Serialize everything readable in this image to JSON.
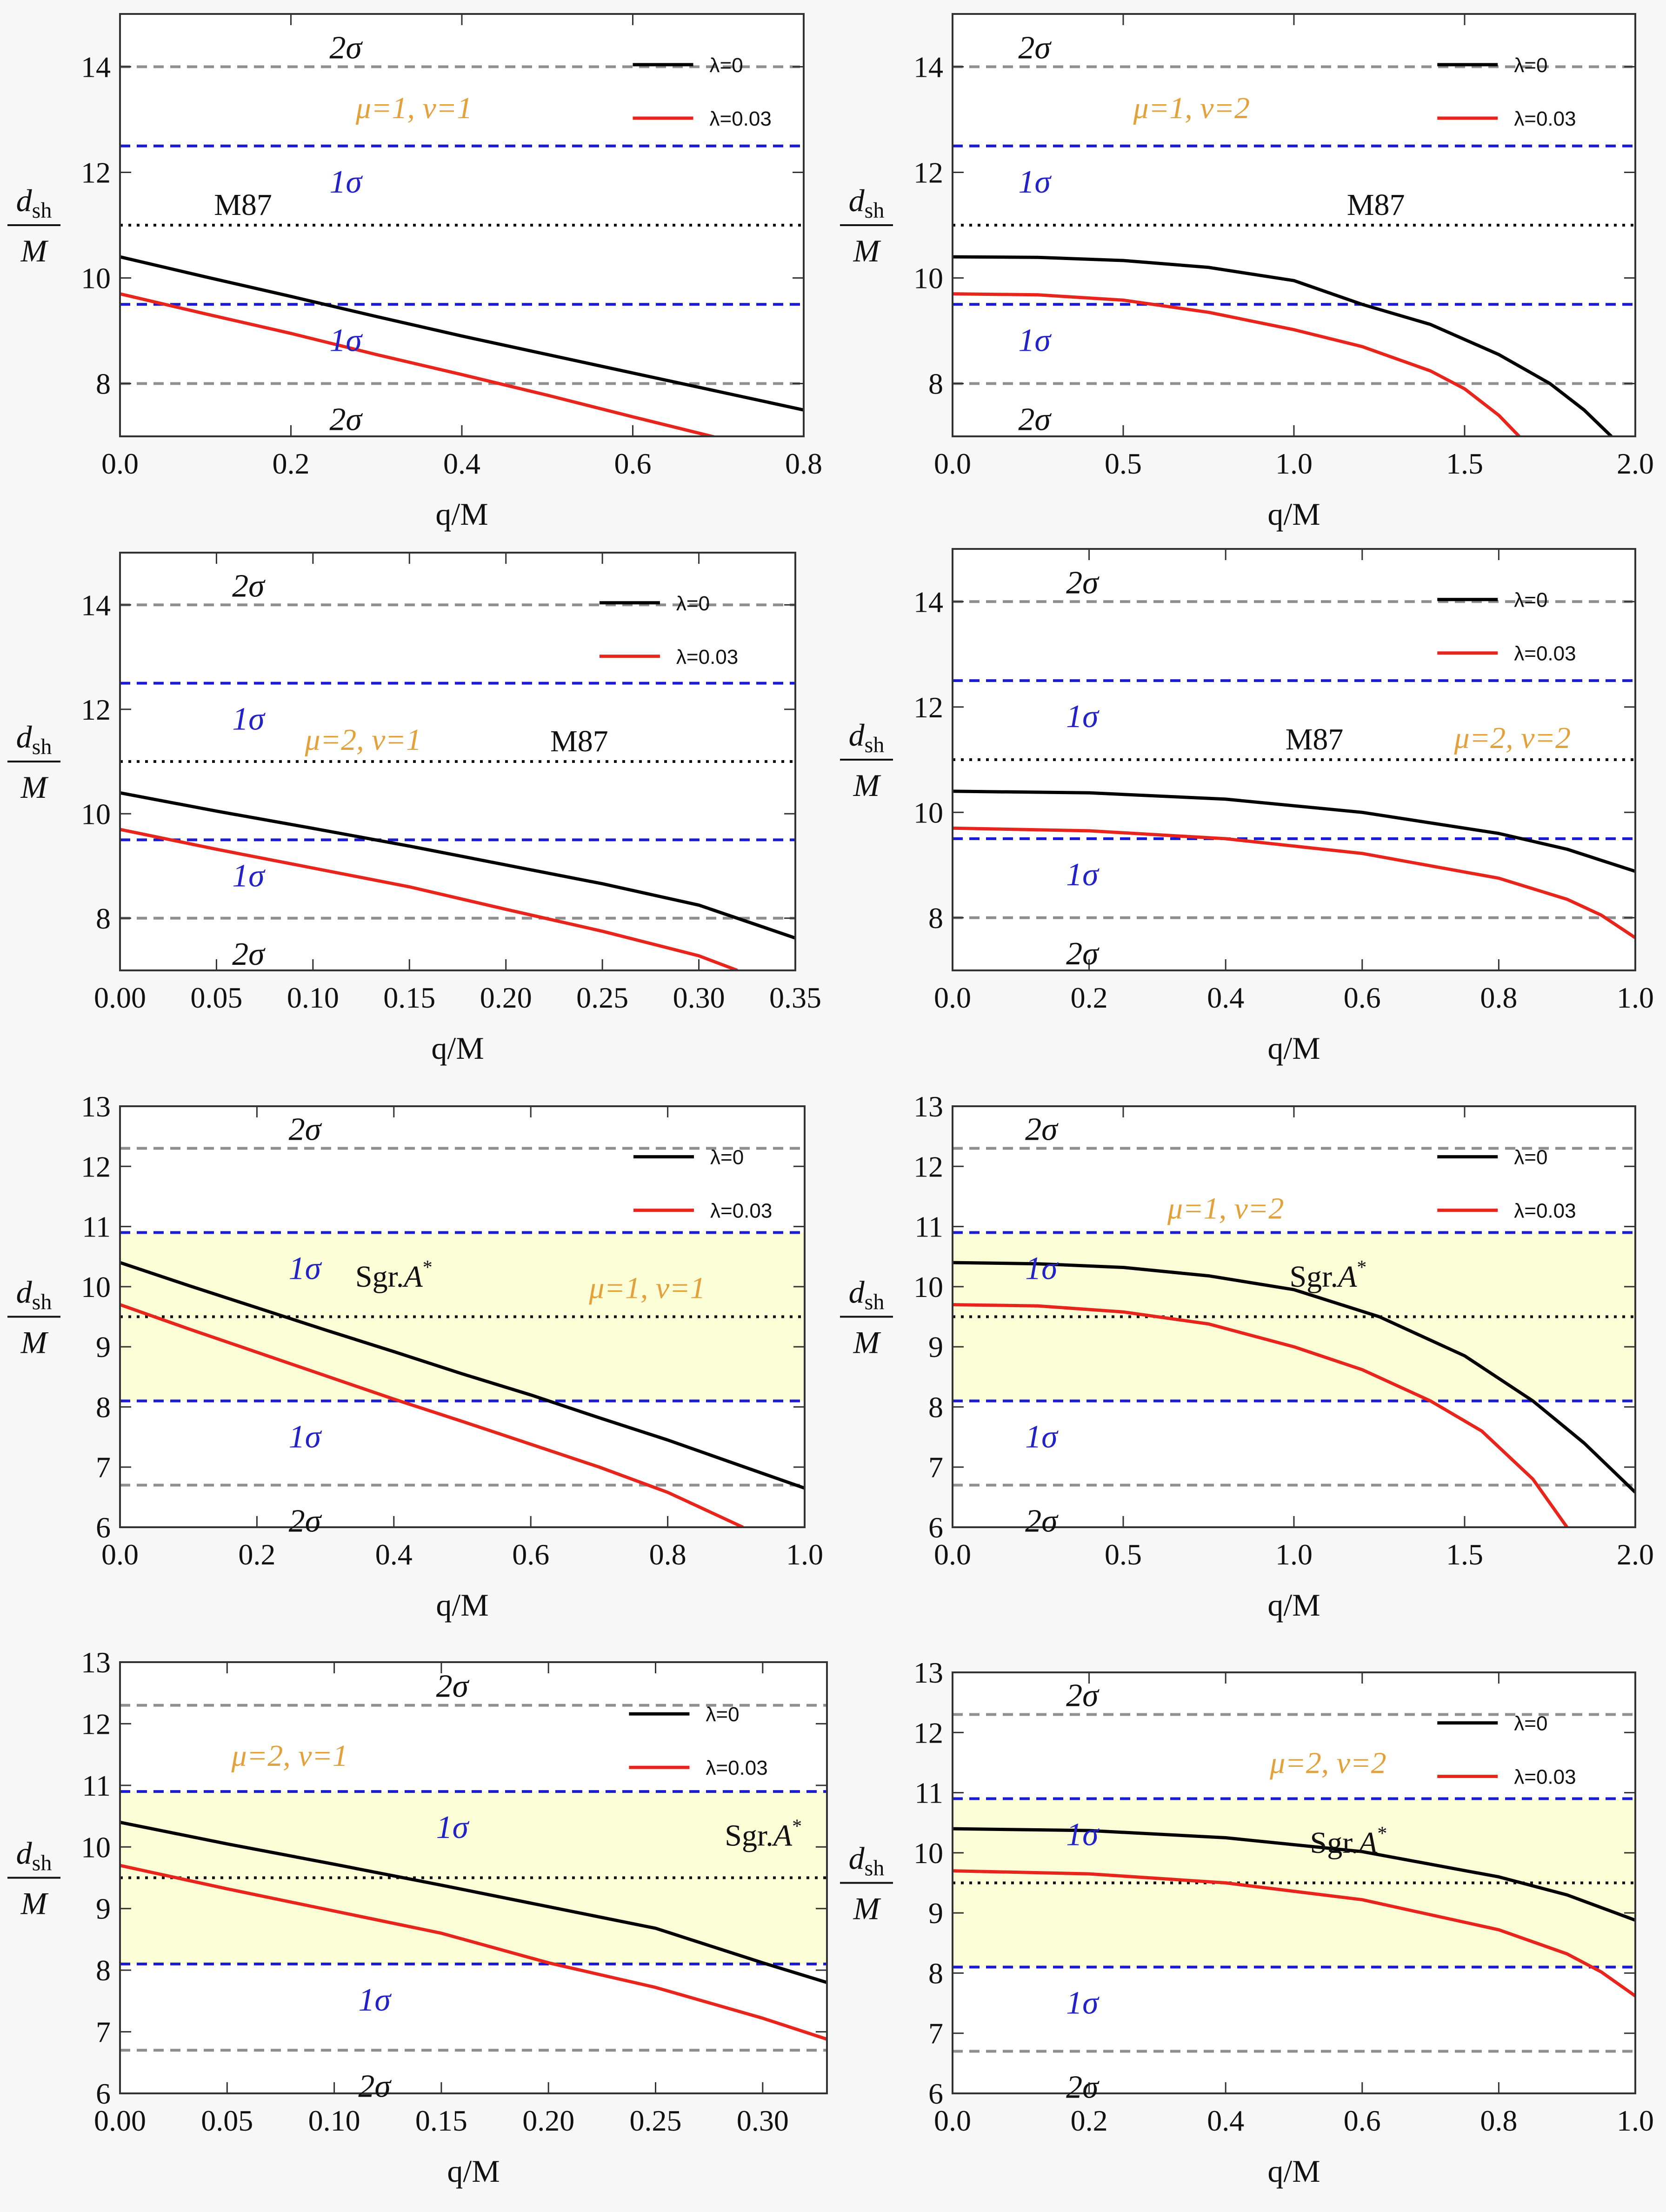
{
  "colors": {
    "lambda0": "#000000",
    "lambda003": "#e8251d",
    "sigma1_line": "#1b1bd1",
    "sigma2_line": "#8f8f8f",
    "sigma1_text": "#2222c8",
    "sigma2_text": "#111111",
    "param_text": "#e3a13c",
    "band_fill": "#fbfdd6"
  },
  "shared": {
    "xlabel": "q/M",
    "ylabel_top": "d",
    "ylabel_sub": "sh",
    "ylabel_bottom": "M",
    "sigma1_label": "1σ",
    "sigma2_label": "2σ"
  },
  "chart_data": [
    {
      "type": "line",
      "ref_label": "M87",
      "ref_italic_sup": "",
      "params": "μ=1, ν=1",
      "xlim": [
        0,
        0.8
      ],
      "ylim": [
        7,
        15
      ],
      "xticks": [
        "0.0",
        "0.2",
        "0.4",
        "0.6",
        "0.8"
      ],
      "yticks": [
        "8",
        "10",
        "12",
        "14"
      ],
      "ref_lines": {
        "sigma2_upper": 14,
        "sigma1_upper": 12.5,
        "center": 11,
        "sigma1_lower": 9.5,
        "sigma2_lower": 8
      },
      "band": null,
      "series": [
        {
          "name": "λ=0",
          "x": [
            0,
            0.1,
            0.2,
            0.3,
            0.4,
            0.5,
            0.6,
            0.7,
            0.8
          ],
          "y": [
            10.4,
            10.02,
            9.65,
            9.27,
            8.9,
            8.55,
            8.2,
            7.85,
            7.5
          ]
        },
        {
          "name": "λ=0.03",
          "x": [
            0,
            0.1,
            0.2,
            0.3,
            0.4,
            0.5,
            0.6,
            0.7
          ],
          "y": [
            9.7,
            9.32,
            8.95,
            8.55,
            8.17,
            7.78,
            7.37,
            6.97
          ]
        }
      ]
    },
    {
      "type": "line",
      "ref_label": "M87",
      "ref_italic_sup": "",
      "params": "μ=1, ν=2",
      "xlim": [
        0,
        2.0
      ],
      "ylim": [
        7,
        15
      ],
      "xticks": [
        "0.0",
        "0.5",
        "1.0",
        "1.5",
        "2.0"
      ],
      "yticks": [
        "8",
        "10",
        "12",
        "14"
      ],
      "ref_lines": {
        "sigma2_upper": 14,
        "sigma1_upper": 12.5,
        "center": 11,
        "sigma1_lower": 9.5,
        "sigma2_lower": 8
      },
      "band": null,
      "series": [
        {
          "name": "λ=0",
          "x": [
            0,
            0.25,
            0.5,
            0.75,
            1.0,
            1.2,
            1.4,
            1.6,
            1.75,
            1.85,
            1.93
          ],
          "y": [
            10.4,
            10.39,
            10.33,
            10.2,
            9.95,
            9.5,
            9.12,
            8.55,
            8.0,
            7.5,
            7.0
          ]
        },
        {
          "name": "λ=0.03",
          "x": [
            0,
            0.25,
            0.5,
            0.75,
            1.0,
            1.2,
            1.4,
            1.5,
            1.6,
            1.66
          ],
          "y": [
            9.7,
            9.68,
            9.58,
            9.35,
            9.02,
            8.7,
            8.24,
            7.9,
            7.4,
            7.0
          ]
        }
      ]
    },
    {
      "type": "line",
      "ref_label": "M87",
      "ref_italic_sup": "",
      "params": "μ=2, ν=1",
      "xlim": [
        0,
        0.35
      ],
      "ylim": [
        7,
        15
      ],
      "xticks": [
        "0.00",
        "0.05",
        "0.10",
        "0.15",
        "0.20",
        "0.25",
        "0.30",
        "0.35"
      ],
      "yticks": [
        "8",
        "10",
        "12",
        "14"
      ],
      "ref_lines": {
        "sigma2_upper": 14,
        "sigma1_upper": 12.5,
        "center": 11,
        "sigma1_lower": 9.5,
        "sigma2_lower": 8
      },
      "band": null,
      "series": [
        {
          "name": "λ=0",
          "x": [
            0,
            0.05,
            0.1,
            0.15,
            0.2,
            0.25,
            0.3,
            0.35
          ],
          "y": [
            10.4,
            10.05,
            9.72,
            9.38,
            9.02,
            8.66,
            8.25,
            7.62
          ]
        },
        {
          "name": "λ=0.03",
          "x": [
            0,
            0.05,
            0.1,
            0.15,
            0.2,
            0.25,
            0.3,
            0.32
          ],
          "y": [
            9.7,
            9.32,
            8.96,
            8.6,
            8.17,
            7.75,
            7.28,
            7.0
          ]
        }
      ]
    },
    {
      "type": "line",
      "ref_label": "M87",
      "ref_italic_sup": "",
      "params": "μ=2, ν=2",
      "xlim": [
        0,
        1.0
      ],
      "ylim": [
        7,
        15
      ],
      "xticks": [
        "0.0",
        "0.2",
        "0.4",
        "0.6",
        "0.8",
        "1.0"
      ],
      "yticks": [
        "8",
        "10",
        "12",
        "14"
      ],
      "ref_lines": {
        "sigma2_upper": 14,
        "sigma1_upper": 12.5,
        "center": 11,
        "sigma1_lower": 9.5,
        "sigma2_lower": 8
      },
      "band": null,
      "series": [
        {
          "name": "λ=0",
          "x": [
            0,
            0.2,
            0.4,
            0.6,
            0.8,
            0.9,
            1.0
          ],
          "y": [
            10.4,
            10.37,
            10.25,
            10.0,
            9.6,
            9.3,
            8.88
          ]
        },
        {
          "name": "λ=0.03",
          "x": [
            0,
            0.2,
            0.4,
            0.6,
            0.8,
            0.9,
            0.95,
            1.0
          ],
          "y": [
            9.7,
            9.65,
            9.5,
            9.22,
            8.75,
            8.35,
            8.05,
            7.62
          ]
        }
      ]
    },
    {
      "type": "line",
      "ref_label": "Sgr.",
      "ref_italic_sup": "A*",
      "params": "μ=1, ν=1",
      "xlim": [
        0,
        1.0
      ],
      "ylim": [
        6,
        13
      ],
      "xticks": [
        "0.0",
        "0.2",
        "0.4",
        "0.6",
        "0.8",
        "1.0"
      ],
      "yticks": [
        "6",
        "7",
        "8",
        "9",
        "10",
        "11",
        "12",
        "13"
      ],
      "ref_lines": {
        "sigma2_upper": 12.3,
        "sigma1_upper": 10.9,
        "center": 9.5,
        "sigma1_lower": 8.1,
        "sigma2_lower": 6.7
      },
      "band": [
        8.1,
        10.9
      ],
      "series": [
        {
          "name": "λ=0",
          "x": [
            0,
            0.1,
            0.2,
            0.3,
            0.4,
            0.5,
            0.6,
            0.7,
            0.8,
            0.9,
            1.0
          ],
          "y": [
            10.4,
            10.02,
            9.65,
            9.28,
            8.92,
            8.55,
            8.2,
            7.82,
            7.45,
            7.05,
            6.65
          ]
        },
        {
          "name": "λ=0.03",
          "x": [
            0,
            0.1,
            0.2,
            0.3,
            0.4,
            0.5,
            0.6,
            0.7,
            0.8,
            0.91
          ],
          "y": [
            9.7,
            9.3,
            8.91,
            8.52,
            8.13,
            7.76,
            7.38,
            7.0,
            6.58,
            6.0
          ]
        }
      ]
    },
    {
      "type": "line",
      "ref_label": "Sgr.",
      "ref_italic_sup": "A*",
      "params": "μ=1, ν=2",
      "xlim": [
        0,
        2.0
      ],
      "ylim": [
        6,
        13
      ],
      "xticks": [
        "0.0",
        "0.5",
        "1.0",
        "1.5",
        "2.0"
      ],
      "yticks": [
        "6",
        "7",
        "8",
        "9",
        "10",
        "11",
        "12",
        "13"
      ],
      "ref_lines": {
        "sigma2_upper": 12.3,
        "sigma1_upper": 10.9,
        "center": 9.5,
        "sigma1_lower": 8.1,
        "sigma2_lower": 6.7
      },
      "band": [
        8.1,
        10.9
      ],
      "series": [
        {
          "name": "λ=0",
          "x": [
            0,
            0.25,
            0.5,
            0.75,
            1.0,
            1.25,
            1.5,
            1.7,
            1.85,
            2.0
          ],
          "y": [
            10.4,
            10.38,
            10.32,
            10.18,
            9.95,
            9.5,
            8.85,
            8.1,
            7.4,
            6.58
          ]
        },
        {
          "name": "λ=0.03",
          "x": [
            0,
            0.25,
            0.5,
            0.75,
            1.0,
            1.2,
            1.4,
            1.55,
            1.7,
            1.8
          ],
          "y": [
            9.7,
            9.68,
            9.58,
            9.38,
            9.0,
            8.62,
            8.1,
            7.6,
            6.8,
            6.0
          ]
        }
      ]
    },
    {
      "type": "line",
      "ref_label": "Sgr.",
      "ref_italic_sup": "A*",
      "params": "μ=2, ν=1",
      "xlim": [
        0,
        0.33
      ],
      "ylim": [
        6,
        13
      ],
      "xticks": [
        "0.00",
        "0.05",
        "0.10",
        "0.15",
        "0.20",
        "0.25",
        "0.30"
      ],
      "yticks": [
        "6",
        "7",
        "8",
        "9",
        "10",
        "11",
        "12",
        "13"
      ],
      "ref_lines": {
        "sigma2_upper": 12.3,
        "sigma1_upper": 10.9,
        "center": 9.5,
        "sigma1_lower": 8.1,
        "sigma2_lower": 6.7
      },
      "band": [
        8.1,
        10.9
      ],
      "series": [
        {
          "name": "λ=0",
          "x": [
            0,
            0.05,
            0.1,
            0.15,
            0.2,
            0.25,
            0.3,
            0.33
          ],
          "y": [
            10.4,
            10.05,
            9.72,
            9.38,
            9.03,
            8.68,
            8.12,
            7.8
          ]
        },
        {
          "name": "λ=0.03",
          "x": [
            0,
            0.05,
            0.1,
            0.15,
            0.2,
            0.25,
            0.3,
            0.33
          ],
          "y": [
            9.7,
            9.32,
            8.96,
            8.6,
            8.12,
            7.72,
            7.22,
            6.88
          ]
        }
      ]
    },
    {
      "type": "line",
      "ref_label": "Sgr.",
      "ref_italic_sup": "A*",
      "params": "μ=2, ν=2",
      "xlim": [
        0,
        1.0
      ],
      "ylim": [
        6,
        13
      ],
      "xticks": [
        "0.0",
        "0.2",
        "0.4",
        "0.6",
        "0.8",
        "1.0"
      ],
      "yticks": [
        "6",
        "7",
        "8",
        "9",
        "10",
        "11",
        "12",
        "13"
      ],
      "ref_lines": {
        "sigma2_upper": 12.3,
        "sigma1_upper": 10.9,
        "center": 9.5,
        "sigma1_lower": 8.1,
        "sigma2_lower": 6.7
      },
      "band": [
        8.1,
        10.9
      ],
      "series": [
        {
          "name": "λ=0",
          "x": [
            0,
            0.2,
            0.4,
            0.6,
            0.8,
            0.9,
            1.0
          ],
          "y": [
            10.4,
            10.37,
            10.25,
            10.02,
            9.6,
            9.3,
            8.88
          ]
        },
        {
          "name": "λ=0.03",
          "x": [
            0,
            0.2,
            0.4,
            0.6,
            0.8,
            0.9,
            0.95,
            1.0
          ],
          "y": [
            9.7,
            9.65,
            9.5,
            9.22,
            8.72,
            8.32,
            8.02,
            7.62
          ]
        }
      ]
    }
  ]
}
